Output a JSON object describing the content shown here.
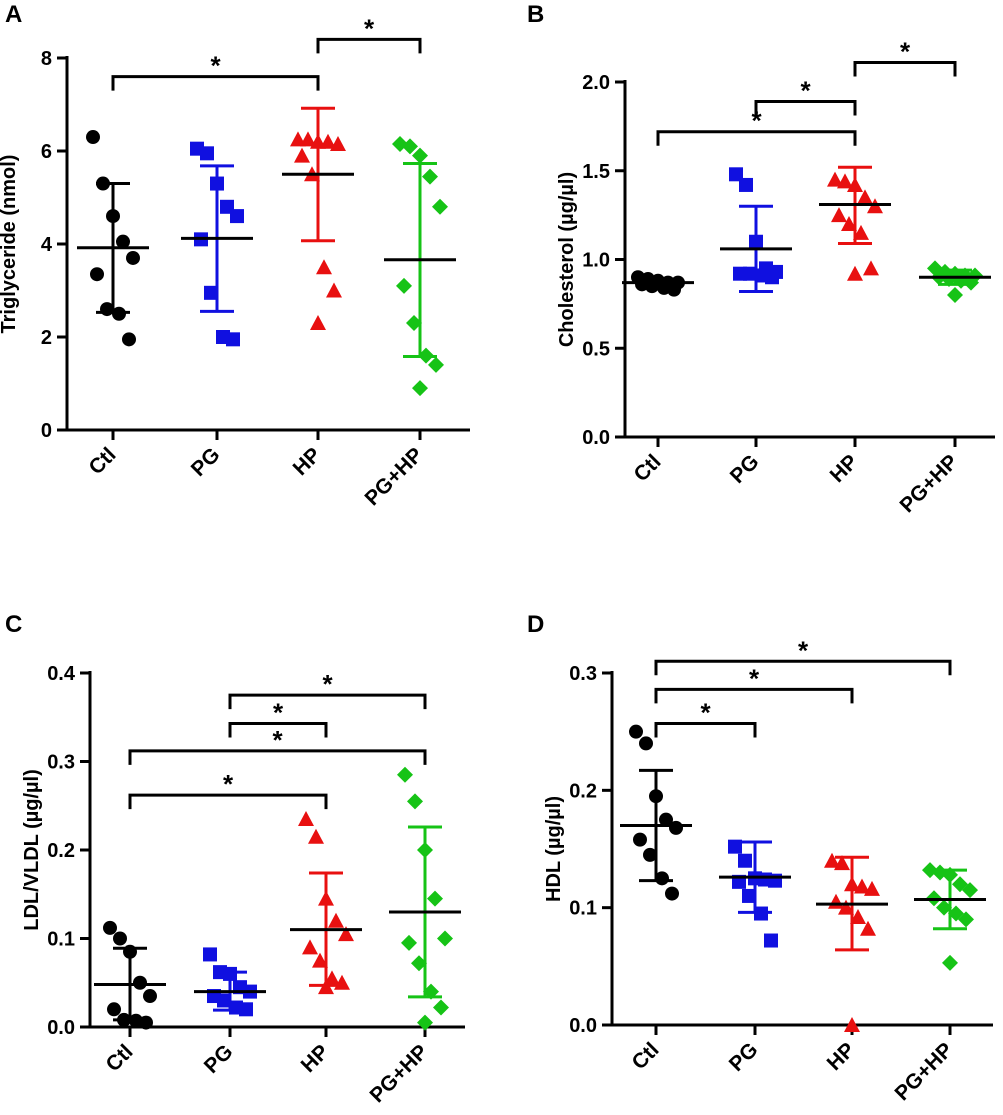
{
  "colors": {
    "Ctl": "#000000",
    "PG": "#1010e0",
    "HP": "#e81010",
    "PG+HP": "#16c316",
    "axis": "#000000"
  },
  "chart_data": [
    {
      "type": "scatter",
      "panel": "A",
      "ylabel": "Triglyceride (nmol)",
      "categories": [
        "Ctl",
        "PG",
        "HP",
        "PG+HP"
      ],
      "ylim": [
        0,
        8
      ],
      "yticks": [
        0,
        2,
        4,
        6,
        8
      ],
      "ytick_labels": [
        "0",
        "2",
        "4",
        "6",
        "8"
      ],
      "series": [
        {
          "name": "Ctl",
          "marker": "circle",
          "values": [
            6.3,
            5.3,
            4.6,
            4.05,
            3.7,
            3.35,
            2.6,
            2.5,
            1.95
          ],
          "mean": 3.92,
          "upper": 5.3,
          "lower": 2.53
        },
        {
          "name": "PG",
          "marker": "square",
          "values": [
            6.05,
            5.95,
            5.3,
            4.8,
            4.6,
            4.1,
            2.95,
            2.0,
            1.95
          ],
          "mean": 4.12,
          "upper": 5.68,
          "lower": 2.55
        },
        {
          "name": "HP",
          "marker": "triangle",
          "values": [
            6.25,
            6.25,
            6.2,
            6.2,
            6.15,
            5.9,
            5.5,
            3.5,
            3.0,
            2.3
          ],
          "mean": 5.5,
          "upper": 6.92,
          "lower": 4.07
        },
        {
          "name": "PG+HP",
          "marker": "diamond",
          "values": [
            6.15,
            6.1,
            5.9,
            5.45,
            4.8,
            3.1,
            2.3,
            1.6,
            1.4,
            0.9
          ],
          "mean": 3.66,
          "upper": 5.73,
          "lower": 1.58
        }
      ],
      "comparisons": [
        {
          "from": "Ctl",
          "to": "HP",
          "level": 7.6,
          "label": "*"
        },
        {
          "from": "HP",
          "to": "PG+HP",
          "level": 8.4,
          "label": "*"
        }
      ]
    },
    {
      "type": "scatter",
      "panel": "B",
      "ylabel": "Cholesterol (µg/µl)",
      "categories": [
        "Ctl",
        "PG",
        "HP",
        "PG+HP"
      ],
      "ylim": [
        0,
        2.0
      ],
      "yticks": [
        0,
        0.5,
        1.0,
        1.5,
        2.0
      ],
      "ytick_labels": [
        "0.0",
        "0.5",
        "1.0",
        "1.5",
        "2.0"
      ],
      "series": [
        {
          "name": "Ctl",
          "marker": "circle",
          "values": [
            0.9,
            0.89,
            0.88,
            0.87,
            0.87,
            0.86,
            0.85,
            0.84,
            0.83
          ],
          "mean": 0.87,
          "upper": 0.88,
          "lower": 0.86
        },
        {
          "name": "PG",
          "marker": "square",
          "values": [
            1.48,
            1.42,
            1.1,
            0.95,
            0.93,
            0.92,
            0.92,
            0.91,
            0.9
          ],
          "mean": 1.06,
          "upper": 1.3,
          "lower": 0.82
        },
        {
          "name": "HP",
          "marker": "triangle",
          "values": [
            1.45,
            1.44,
            1.42,
            1.35,
            1.3,
            1.25,
            1.2,
            1.15,
            0.95,
            0.92
          ],
          "mean": 1.31,
          "upper": 1.52,
          "lower": 1.09
        },
        {
          "name": "PG+HP",
          "marker": "diamond",
          "values": [
            0.95,
            0.93,
            0.92,
            0.91,
            0.91,
            0.9,
            0.89,
            0.88,
            0.87,
            0.8
          ],
          "mean": 0.9,
          "upper": 0.94,
          "lower": 0.86
        }
      ],
      "comparisons": [
        {
          "from": "Ctl",
          "to": "HP",
          "level": 1.72,
          "label": "*"
        },
        {
          "from": "PG",
          "to": "HP",
          "level": 1.89,
          "label": "*"
        },
        {
          "from": "HP",
          "to": "PG+HP",
          "level": 2.11,
          "label": "*"
        }
      ]
    },
    {
      "type": "scatter",
      "panel": "C",
      "ylabel": "LDL/VLDL (µg/µl)",
      "categories": [
        "Ctl",
        "PG",
        "HP",
        "PG+HP"
      ],
      "ylim": [
        0,
        0.4
      ],
      "yticks": [
        0,
        0.1,
        0.2,
        0.3,
        0.4
      ],
      "ytick_labels": [
        "0.0",
        "0.1",
        "0.2",
        "0.3",
        "0.4"
      ],
      "series": [
        {
          "name": "Ctl",
          "marker": "circle",
          "values": [
            0.112,
            0.1,
            0.085,
            0.05,
            0.035,
            0.02,
            0.008,
            0.007,
            0.005
          ],
          "mean": 0.048,
          "upper": 0.089,
          "lower": 0.008
        },
        {
          "name": "PG",
          "marker": "square",
          "values": [
            0.082,
            0.062,
            0.06,
            0.045,
            0.04,
            0.035,
            0.03,
            0.022,
            0.02
          ],
          "mean": 0.04,
          "upper": 0.062,
          "lower": 0.019
        },
        {
          "name": "HP",
          "marker": "triangle",
          "values": [
            0.235,
            0.215,
            0.145,
            0.12,
            0.105,
            0.09,
            0.075,
            0.055,
            0.05,
            0.045
          ],
          "mean": 0.11,
          "upper": 0.174,
          "lower": 0.047
        },
        {
          "name": "PG+HP",
          "marker": "diamond",
          "values": [
            0.285,
            0.255,
            0.2,
            0.145,
            0.1,
            0.095,
            0.072,
            0.04,
            0.022,
            0.005
          ],
          "mean": 0.13,
          "upper": 0.226,
          "lower": 0.034
        }
      ],
      "comparisons": [
        {
          "from": "Ctl",
          "to": "HP",
          "level": 0.262,
          "label": "*"
        },
        {
          "from": "Ctl",
          "to": "PG+HP",
          "level": 0.312,
          "label": "*"
        },
        {
          "from": "PG",
          "to": "HP",
          "level": 0.343,
          "label": "*"
        },
        {
          "from": "PG",
          "to": "PG+HP",
          "level": 0.375,
          "label": "*"
        }
      ]
    },
    {
      "type": "scatter",
      "panel": "D",
      "ylabel": "HDL (µg/µl)",
      "categories": [
        "Ctl",
        "PG",
        "HP",
        "PG+HP"
      ],
      "ylim": [
        0,
        0.3
      ],
      "yticks": [
        0,
        0.1,
        0.2,
        0.3
      ],
      "ytick_labels": [
        "0.0",
        "0.1",
        "0.2",
        "0.3"
      ],
      "series": [
        {
          "name": "Ctl",
          "marker": "circle",
          "values": [
            0.25,
            0.24,
            0.195,
            0.175,
            0.168,
            0.158,
            0.145,
            0.125,
            0.112
          ],
          "mean": 0.17,
          "upper": 0.217,
          "lower": 0.123
        },
        {
          "name": "PG",
          "marker": "square",
          "values": [
            0.152,
            0.14,
            0.125,
            0.124,
            0.123,
            0.122,
            0.11,
            0.095,
            0.072
          ],
          "mean": 0.126,
          "upper": 0.156,
          "lower": 0.096
        },
        {
          "name": "HP",
          "marker": "triangle",
          "values": [
            0.14,
            0.138,
            0.12,
            0.118,
            0.116,
            0.105,
            0.1,
            0.092,
            0.082,
            0.0
          ],
          "mean": 0.103,
          "upper": 0.143,
          "lower": 0.064
        },
        {
          "name": "PG+HP",
          "marker": "diamond",
          "values": [
            0.132,
            0.13,
            0.128,
            0.12,
            0.115,
            0.108,
            0.1,
            0.095,
            0.09,
            0.053
          ],
          "mean": 0.107,
          "upper": 0.132,
          "lower": 0.082
        }
      ],
      "comparisons": [
        {
          "from": "Ctl",
          "to": "PG",
          "level": 0.257,
          "label": "*"
        },
        {
          "from": "Ctl",
          "to": "HP",
          "level": 0.286,
          "label": "*"
        },
        {
          "from": "Ctl",
          "to": "PG+HP",
          "level": 0.31,
          "label": "*"
        }
      ]
    }
  ]
}
